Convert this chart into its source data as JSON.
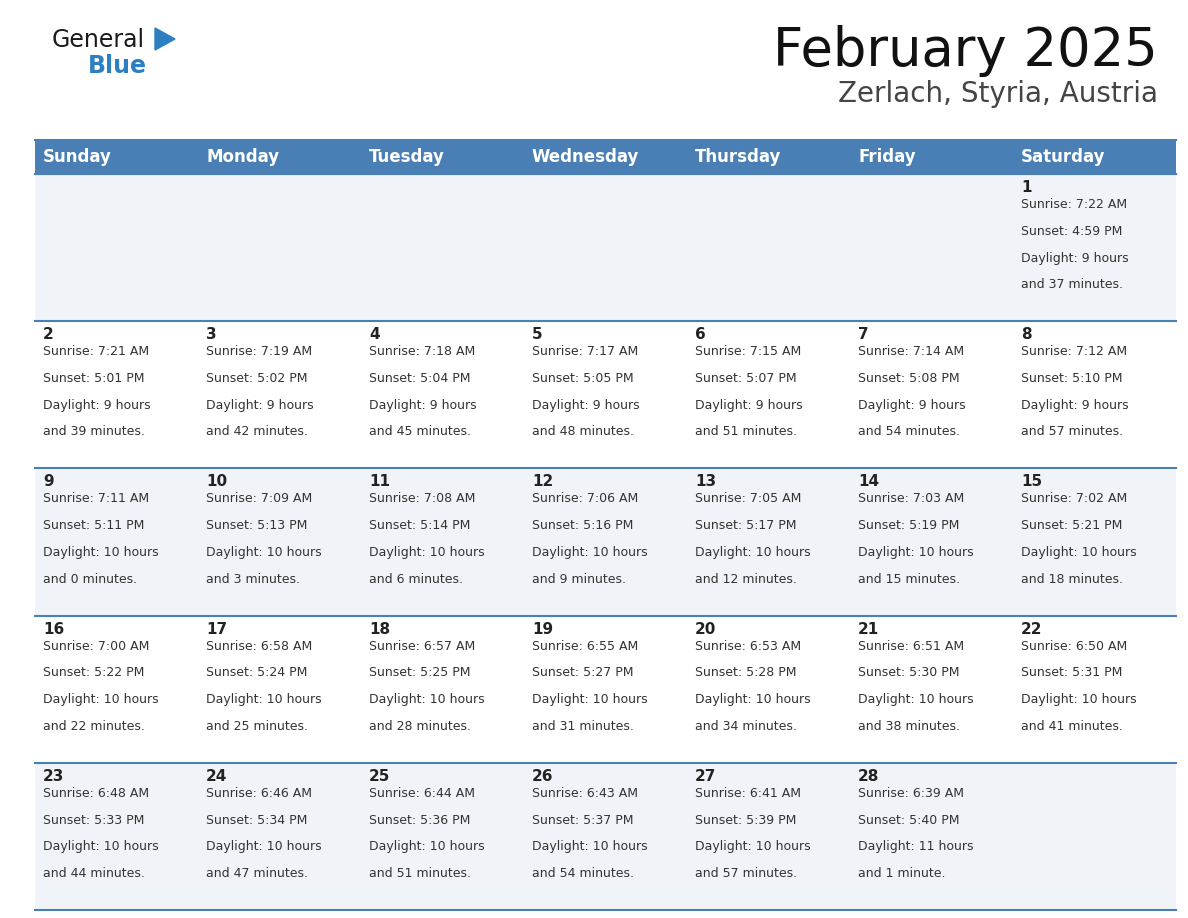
{
  "title": "February 2025",
  "subtitle": "Zerlach, Styria, Austria",
  "days_of_week": [
    "Sunday",
    "Monday",
    "Tuesday",
    "Wednesday",
    "Thursday",
    "Friday",
    "Saturday"
  ],
  "header_bg": "#4a7fb5",
  "header_text": "#ffffff",
  "row_bg_odd": "#f0f4f8",
  "row_bg_even": "#ffffff",
  "separator_color": "#4a7fb5",
  "text_color": "#333333",
  "day_num_color": "#222222",
  "logo_general_color": "#1a1a1a",
  "logo_blue_color": "#2e7fc1",
  "calendar_data": [
    [
      {
        "day": "",
        "sunrise": "",
        "sunset": "",
        "daylight": ""
      },
      {
        "day": "",
        "sunrise": "",
        "sunset": "",
        "daylight": ""
      },
      {
        "day": "",
        "sunrise": "",
        "sunset": "",
        "daylight": ""
      },
      {
        "day": "",
        "sunrise": "",
        "sunset": "",
        "daylight": ""
      },
      {
        "day": "",
        "sunrise": "",
        "sunset": "",
        "daylight": ""
      },
      {
        "day": "",
        "sunrise": "",
        "sunset": "",
        "daylight": ""
      },
      {
        "day": "1",
        "sunrise": "7:22 AM",
        "sunset": "4:59 PM",
        "daylight": "9 hours and 37 minutes."
      }
    ],
    [
      {
        "day": "2",
        "sunrise": "7:21 AM",
        "sunset": "5:01 PM",
        "daylight": "9 hours and 39 minutes."
      },
      {
        "day": "3",
        "sunrise": "7:19 AM",
        "sunset": "5:02 PM",
        "daylight": "9 hours and 42 minutes."
      },
      {
        "day": "4",
        "sunrise": "7:18 AM",
        "sunset": "5:04 PM",
        "daylight": "9 hours and 45 minutes."
      },
      {
        "day": "5",
        "sunrise": "7:17 AM",
        "sunset": "5:05 PM",
        "daylight": "9 hours and 48 minutes."
      },
      {
        "day": "6",
        "sunrise": "7:15 AM",
        "sunset": "5:07 PM",
        "daylight": "9 hours and 51 minutes."
      },
      {
        "day": "7",
        "sunrise": "7:14 AM",
        "sunset": "5:08 PM",
        "daylight": "9 hours and 54 minutes."
      },
      {
        "day": "8",
        "sunrise": "7:12 AM",
        "sunset": "5:10 PM",
        "daylight": "9 hours and 57 minutes."
      }
    ],
    [
      {
        "day": "9",
        "sunrise": "7:11 AM",
        "sunset": "5:11 PM",
        "daylight": "10 hours and 0 minutes."
      },
      {
        "day": "10",
        "sunrise": "7:09 AM",
        "sunset": "5:13 PM",
        "daylight": "10 hours and 3 minutes."
      },
      {
        "day": "11",
        "sunrise": "7:08 AM",
        "sunset": "5:14 PM",
        "daylight": "10 hours and 6 minutes."
      },
      {
        "day": "12",
        "sunrise": "7:06 AM",
        "sunset": "5:16 PM",
        "daylight": "10 hours and 9 minutes."
      },
      {
        "day": "13",
        "sunrise": "7:05 AM",
        "sunset": "5:17 PM",
        "daylight": "10 hours and 12 minutes."
      },
      {
        "day": "14",
        "sunrise": "7:03 AM",
        "sunset": "5:19 PM",
        "daylight": "10 hours and 15 minutes."
      },
      {
        "day": "15",
        "sunrise": "7:02 AM",
        "sunset": "5:21 PM",
        "daylight": "10 hours and 18 minutes."
      }
    ],
    [
      {
        "day": "16",
        "sunrise": "7:00 AM",
        "sunset": "5:22 PM",
        "daylight": "10 hours and 22 minutes."
      },
      {
        "day": "17",
        "sunrise": "6:58 AM",
        "sunset": "5:24 PM",
        "daylight": "10 hours and 25 minutes."
      },
      {
        "day": "18",
        "sunrise": "6:57 AM",
        "sunset": "5:25 PM",
        "daylight": "10 hours and 28 minutes."
      },
      {
        "day": "19",
        "sunrise": "6:55 AM",
        "sunset": "5:27 PM",
        "daylight": "10 hours and 31 minutes."
      },
      {
        "day": "20",
        "sunrise": "6:53 AM",
        "sunset": "5:28 PM",
        "daylight": "10 hours and 34 minutes."
      },
      {
        "day": "21",
        "sunrise": "6:51 AM",
        "sunset": "5:30 PM",
        "daylight": "10 hours and 38 minutes."
      },
      {
        "day": "22",
        "sunrise": "6:50 AM",
        "sunset": "5:31 PM",
        "daylight": "10 hours and 41 minutes."
      }
    ],
    [
      {
        "day": "23",
        "sunrise": "6:48 AM",
        "sunset": "5:33 PM",
        "daylight": "10 hours and 44 minutes."
      },
      {
        "day": "24",
        "sunrise": "6:46 AM",
        "sunset": "5:34 PM",
        "daylight": "10 hours and 47 minutes."
      },
      {
        "day": "25",
        "sunrise": "6:44 AM",
        "sunset": "5:36 PM",
        "daylight": "10 hours and 51 minutes."
      },
      {
        "day": "26",
        "sunrise": "6:43 AM",
        "sunset": "5:37 PM",
        "daylight": "10 hours and 54 minutes."
      },
      {
        "day": "27",
        "sunrise": "6:41 AM",
        "sunset": "5:39 PM",
        "daylight": "10 hours and 57 minutes."
      },
      {
        "day": "28",
        "sunrise": "6:39 AM",
        "sunset": "5:40 PM",
        "daylight": "11 hours and 1 minute."
      },
      {
        "day": "",
        "sunrise": "",
        "sunset": "",
        "daylight": ""
      }
    ]
  ]
}
